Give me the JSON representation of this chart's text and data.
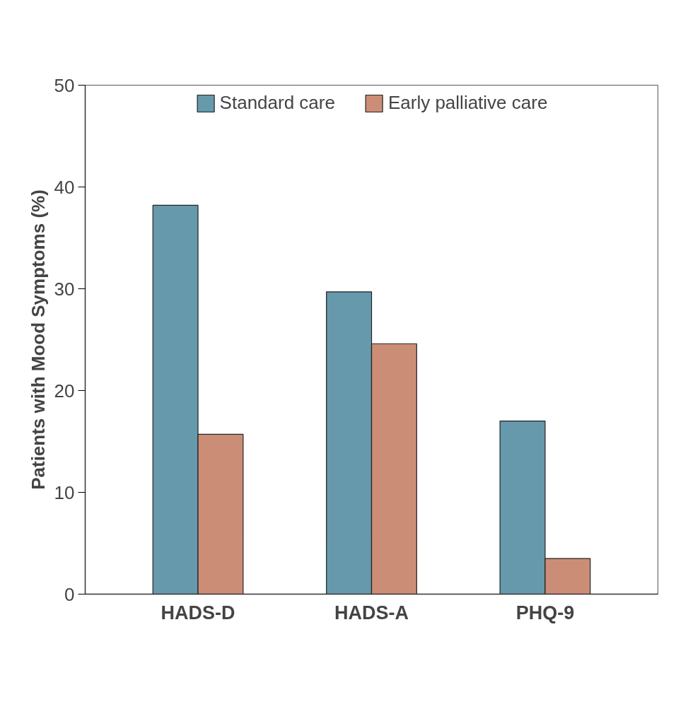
{
  "chart_data": {
    "type": "bar",
    "ylabel": "Patients with Mood Symptoms (%)",
    "categories": [
      "HADS-D",
      "HADS-A",
      "PHQ-9"
    ],
    "series": [
      {
        "name": "Standard care",
        "color": "#6699ab",
        "values": [
          38.2,
          29.7,
          17.0
        ]
      },
      {
        "name": "Early palliative care",
        "color": "#cc8d77",
        "values": [
          15.7,
          24.6,
          3.5
        ]
      }
    ],
    "ylim": [
      0,
      50
    ],
    "yticks": [
      0,
      10,
      20,
      30,
      40,
      50
    ],
    "grid": false,
    "legend": "top"
  }
}
